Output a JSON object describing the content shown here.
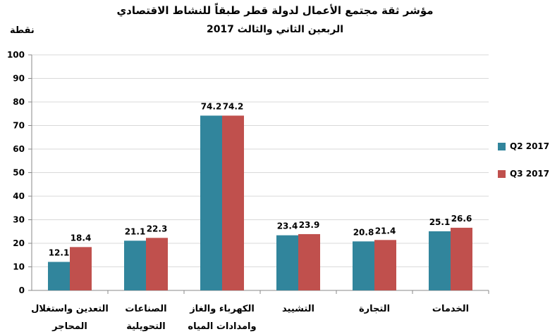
{
  "chart_data": {
    "type": "bar",
    "title": "مؤشر ثقة مجتمع الأعمال لدولة قطر طبقاً للنشاط الاقتصادي",
    "subtitle": "الربعين الثاني والثالث 2017",
    "ylabel": "نقطة",
    "ylim": [
      0,
      100
    ],
    "yticks": [
      0,
      10,
      20,
      30,
      40,
      50,
      60,
      70,
      80,
      90,
      100
    ],
    "grid": true,
    "legend_position": "right",
    "categories": [
      [
        "التعدين واستغلال",
        "المحاجر"
      ],
      [
        "الصناعات",
        "التحويلية"
      ],
      [
        "الكهرباء والغاز",
        "وامدادات المياه"
      ],
      [
        "التشييد"
      ],
      [
        "التجارة"
      ],
      [
        "الخدمات"
      ]
    ],
    "series": [
      {
        "name": "Q2 2017",
        "color": "#31859c",
        "values": [
          12.1,
          21.1,
          74.2,
          23.4,
          20.8,
          25.1
        ]
      },
      {
        "name": "Q3 2017",
        "color": "#c0504d",
        "values": [
          18.4,
          22.3,
          74.2,
          23.9,
          21.4,
          26.6
        ]
      }
    ]
  }
}
